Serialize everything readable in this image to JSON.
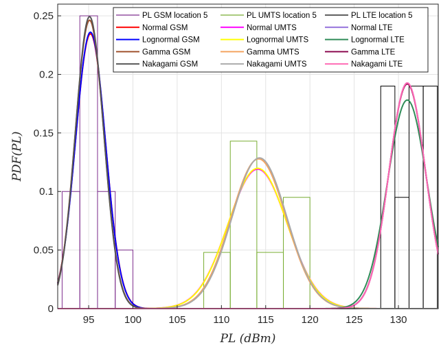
{
  "chart_data": {
    "type": "line",
    "xlabel": "PL (dBm)",
    "ylabel": "PDF(PL)",
    "xlim": [
      91.5,
      134.5
    ],
    "ylim": [
      0,
      0.26
    ],
    "grid": true,
    "legend_position": "top-right",
    "xticks": [
      95,
      100,
      105,
      110,
      115,
      120,
      125,
      130
    ],
    "yticks": [
      0,
      0.05,
      0.1,
      0.15,
      0.2,
      0.25
    ],
    "xtick_labels": [
      "95",
      "100",
      "105",
      "110",
      "115",
      "120",
      "125",
      "130"
    ],
    "ytick_labels": [
      "0",
      "0.05",
      "0.1",
      "0.15",
      "0.2",
      "0.25"
    ],
    "histograms": [
      {
        "name": "PL GSM location 5",
        "color": "#7e2f8e",
        "bins": [
          {
            "x0": 92,
            "x1": 94,
            "y": 0.1
          },
          {
            "x0": 94,
            "x1": 96,
            "y": 0.25
          },
          {
            "x0": 96,
            "x1": 98,
            "y": 0.1
          },
          {
            "x0": 98,
            "x1": 100,
            "y": 0.05
          }
        ]
      },
      {
        "name": "PL UMTS location 5",
        "color": "#77ac30",
        "bins": [
          {
            "x0": 108,
            "x1": 111,
            "y": 0.048
          },
          {
            "x0": 111,
            "x1": 114,
            "y": 0.143
          },
          {
            "x0": 114,
            "x1": 117,
            "y": 0.048
          },
          {
            "x0": 117,
            "x1": 120,
            "y": 0.095
          }
        ]
      },
      {
        "name": "PL LTE location 5",
        "color": "#000000",
        "bins": [
          {
            "x0": 128,
            "x1": 129.6,
            "y": 0.19
          },
          {
            "x0": 129.6,
            "x1": 131.2,
            "y": 0.095
          },
          {
            "x0": 131.2,
            "x1": 132.8,
            "y": 0.19
          },
          {
            "x0": 132.8,
            "x1": 134.4,
            "y": 0.19
          }
        ]
      }
    ],
    "series": [
      {
        "name": "Normal GSM",
        "color": "#ff0000",
        "dist": "normal",
        "mu": 95.2,
        "sigma": 1.7
      },
      {
        "name": "Lognormal GSM",
        "color": "#0000ff",
        "dist": "normal",
        "mu": 95.2,
        "sigma": 1.69
      },
      {
        "name": "Gamma GSM",
        "color": "#a0522d",
        "dist": "normal",
        "mu": 95.1,
        "sigma": 1.62
      },
      {
        "name": "Nakagami GSM",
        "color": "#555555",
        "dist": "normal",
        "mu": 95.1,
        "sigma": 1.6
      },
      {
        "name": "Normal UMTS",
        "color": "#ff00ff",
        "dist": "normal",
        "mu": 114.1,
        "sigma": 3.35
      },
      {
        "name": "Lognormal UMTS",
        "color": "#ffff00",
        "dist": "normal",
        "mu": 114.1,
        "sigma": 3.33
      },
      {
        "name": "Gamma UMTS",
        "color": "#f4a460",
        "dist": "normal",
        "mu": 114.2,
        "sigma": 3.12
      },
      {
        "name": "Nakagami UMTS",
        "color": "#a9a9a9",
        "dist": "normal",
        "mu": 114.3,
        "sigma": 3.1
      },
      {
        "name": "Normal LTE",
        "color": "#9370db",
        "dist": "normal",
        "mu": 131.0,
        "sigma": 2.07
      },
      {
        "name": "Lognormal LTE",
        "color": "#2e8b57",
        "dist": "normal",
        "mu": 131.0,
        "sigma": 2.24
      },
      {
        "name": "Gamma LTE",
        "color": "#8b0a50",
        "dist": "normal",
        "mu": 131.0,
        "sigma": 2.08
      },
      {
        "name": "Nakagami LTE",
        "color": "#ff69b4",
        "dist": "normal",
        "mu": 131.0,
        "sigma": 2.07
      }
    ],
    "legend_rows": [
      [
        "PL GSM location 5",
        "PL UMTS location 5",
        "PL LTE location 5"
      ],
      [
        "Normal GSM",
        "Normal UMTS",
        "Normal LTE"
      ],
      [
        "Lognormal GSM",
        "Lognormal UMTS",
        "Lognormal LTE"
      ],
      [
        "Gamma GSM",
        "Gamma UMTS",
        "Gamma LTE"
      ],
      [
        "Nakagami GSM",
        "Nakagami UMTS",
        "Nakagami LTE"
      ]
    ]
  }
}
